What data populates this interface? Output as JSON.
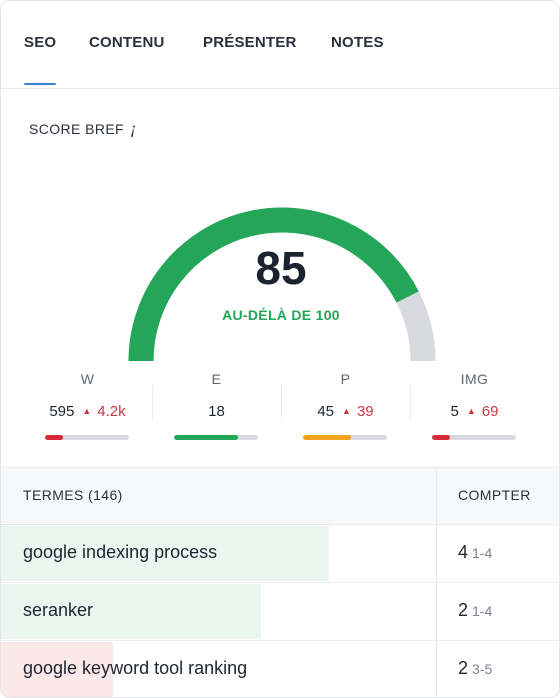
{
  "tabs": [
    {
      "label": "SEO",
      "active": true
    },
    {
      "label": "CONTENU",
      "active": false
    },
    {
      "label": "PRÉSENTER",
      "active": false
    },
    {
      "label": "NOTES",
      "active": false
    }
  ],
  "score": {
    "title": "SCORE BREF",
    "info_glyph": "¡",
    "value": "85",
    "caption": "AU-DÉLÀ DE 100",
    "fraction": 0.85,
    "colors": {
      "fill": "#23a657",
      "track": "#d8dae0"
    }
  },
  "metrics": [
    {
      "label": "W",
      "value": "595",
      "target": "4.2k",
      "has_target": true,
      "fill": 0.22,
      "color": "#d62b37"
    },
    {
      "label": "E",
      "value": "18",
      "target": "",
      "has_target": false,
      "fill": 0.76,
      "color": "#23a657"
    },
    {
      "label": "P",
      "value": "45",
      "target": "39",
      "has_target": true,
      "fill": 0.57,
      "color": "#f2a31b"
    },
    {
      "label": "IMG",
      "value": "5",
      "target": "69",
      "has_target": true,
      "fill": 0.22,
      "color": "#d62b37"
    }
  ],
  "table": {
    "term_header": "TERMES (146)",
    "count_header": "COMPTER",
    "rows": [
      {
        "term": "google indexing process",
        "count": "4",
        "range": "1-4",
        "highlight": 0.585,
        "bg": "#eaf6ef"
      },
      {
        "term": "seranker",
        "count": "2",
        "range": "1-4",
        "highlight": 0.465,
        "bg": "#eaf6ef"
      },
      {
        "term": "google keyword tool ranking",
        "count": "2",
        "range": "3-5",
        "highlight": 0.2,
        "bg": "#fbe9ea"
      }
    ]
  }
}
